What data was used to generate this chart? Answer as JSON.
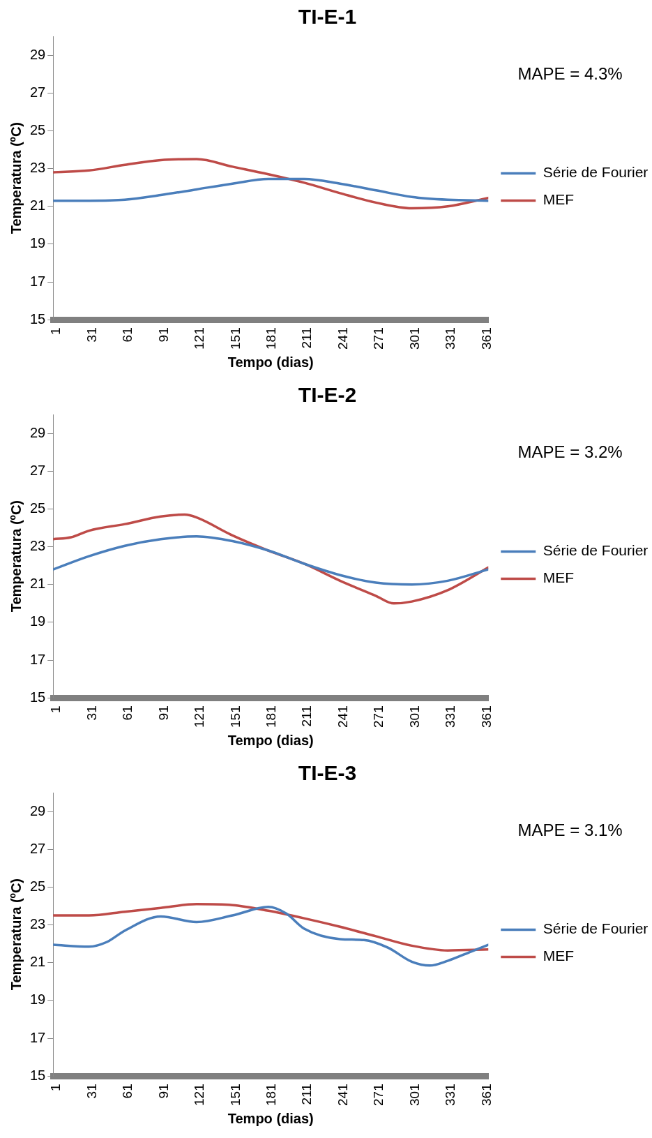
{
  "chart_data": [
    {
      "type": "line",
      "title": "TI-E-1",
      "xlabel": "Tempo (dias)",
      "ylabel": "Temperatura (ºC)",
      "annotations": [
        "MAPE = 4.3%"
      ],
      "xlim": [
        1,
        365
      ],
      "xticks": [
        1,
        31,
        61,
        91,
        121,
        151,
        181,
        211,
        241,
        271,
        301,
        331,
        361
      ],
      "ylim": [
        15,
        30
      ],
      "yticks": [
        15,
        17,
        19,
        21,
        23,
        25,
        27,
        29
      ],
      "grid": false,
      "legend": "right",
      "marker": "none",
      "series": [
        {
          "name": "Série de Fourier",
          "color": "#4a7ebb",
          "x": [
            1,
            31,
            61,
            91,
            121,
            151,
            181,
            211,
            241,
            271,
            301,
            331,
            365
          ],
          "values": [
            21.3,
            21.3,
            21.35,
            21.6,
            21.9,
            22.2,
            22.45,
            22.45,
            22.2,
            21.85,
            21.5,
            21.35,
            21.3
          ]
        },
        {
          "name": "MEF",
          "color": "#be4b48",
          "x": [
            1,
            31,
            61,
            91,
            121,
            151,
            181,
            211,
            241,
            271,
            301,
            331,
            365
          ],
          "values": [
            22.8,
            22.9,
            23.2,
            23.45,
            23.5,
            23.1,
            22.7,
            22.25,
            21.7,
            21.2,
            20.9,
            21.0,
            21.45
          ]
        }
      ]
    },
    {
      "type": "line",
      "title": "TI-E-2",
      "xlabel": "Tempo (dias)",
      "ylabel": "Temperatura (ºC)",
      "annotations": [
        "MAPE = 3.2%"
      ],
      "xlim": [
        1,
        365
      ],
      "xticks": [
        1,
        31,
        61,
        91,
        121,
        151,
        181,
        211,
        241,
        271,
        301,
        331,
        361
      ],
      "ylim": [
        15,
        30
      ],
      "yticks": [
        15,
        17,
        19,
        21,
        23,
        25,
        27,
        29
      ],
      "grid": false,
      "legend": "right",
      "marker": "none",
      "series": [
        {
          "name": "Série de Fourier",
          "color": "#4a7ebb",
          "x": [
            1,
            31,
            61,
            91,
            121,
            151,
            181,
            211,
            241,
            271,
            301,
            331,
            365
          ],
          "values": [
            21.8,
            22.5,
            23.05,
            23.4,
            23.55,
            23.3,
            22.8,
            22.1,
            21.5,
            21.1,
            21.0,
            21.2,
            21.8
          ]
        },
        {
          "name": "MEF",
          "color": "#be4b48",
          "x": [
            1,
            16,
            31,
            61,
            91,
            111,
            121,
            151,
            181,
            211,
            241,
            271,
            286,
            301,
            331,
            365
          ],
          "values": [
            23.4,
            23.5,
            23.85,
            24.2,
            24.6,
            24.7,
            24.55,
            23.6,
            22.8,
            22.1,
            21.2,
            20.4,
            20.0,
            20.1,
            20.7,
            21.9
          ]
        }
      ]
    },
    {
      "type": "line",
      "title": "TI-E-3",
      "xlabel": "Tempo (dias)",
      "ylabel": "Temperatura (ºC)",
      "annotations": [
        "MAPE = 3.1%"
      ],
      "xlim": [
        1,
        365
      ],
      "xticks": [
        1,
        31,
        61,
        91,
        121,
        151,
        181,
        211,
        241,
        271,
        301,
        331,
        361
      ],
      "ylim": [
        15,
        30
      ],
      "yticks": [
        15,
        17,
        19,
        21,
        23,
        25,
        27,
        29
      ],
      "grid": false,
      "legend": "right",
      "marker": "none",
      "series": [
        {
          "name": "Série de Fourier",
          "color": "#4a7ebb",
          "x": [
            1,
            31,
            46,
            61,
            91,
            121,
            151,
            181,
            196,
            211,
            241,
            261,
            281,
            301,
            316,
            331,
            351,
            365
          ],
          "values": [
            21.95,
            21.85,
            22.1,
            22.7,
            23.45,
            23.15,
            23.5,
            23.95,
            23.6,
            22.8,
            22.25,
            22.2,
            21.8,
            21.05,
            20.85,
            21.1,
            21.6,
            21.95
          ]
        },
        {
          "name": "MEF",
          "color": "#be4b48",
          "x": [
            1,
            31,
            61,
            91,
            121,
            151,
            181,
            211,
            241,
            271,
            301,
            331,
            365
          ],
          "values": [
            23.5,
            23.5,
            23.7,
            23.9,
            24.1,
            24.05,
            23.75,
            23.35,
            22.9,
            22.4,
            21.9,
            21.65,
            21.7
          ]
        }
      ]
    }
  ]
}
